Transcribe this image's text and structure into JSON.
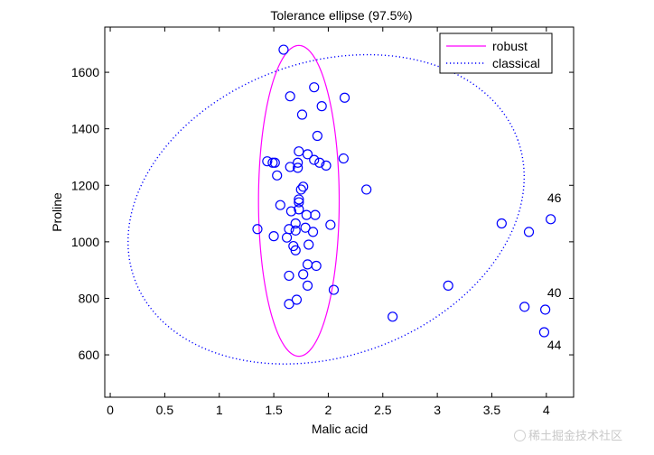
{
  "chart_data": {
    "type": "scatter",
    "title": "Tolerance ellipse (97.5%)",
    "xlabel": "Malic acid",
    "ylabel": "Proline",
    "xlim": [
      -0.05,
      4.25
    ],
    "ylim": [
      450,
      1760
    ],
    "xticks": [
      0,
      0.5,
      1,
      1.5,
      2,
      2.5,
      3,
      3.5,
      4
    ],
    "xtick_labels": [
      "0",
      "0.5",
      "1",
      "1.5",
      "2",
      "2.5",
      "3",
      "3.5",
      "4"
    ],
    "yticks": [
      600,
      800,
      1000,
      1200,
      1400,
      1600
    ],
    "ytick_labels": [
      "600",
      "800",
      "1000",
      "1200",
      "1400",
      "1600"
    ],
    "grid": false,
    "legend": {
      "position": "top-right",
      "entries": [
        {
          "label": "robust",
          "color": "#ff00ff",
          "style": "solid"
        },
        {
          "label": "classical",
          "color": "#0000ff",
          "style": "dotted"
        }
      ]
    },
    "ellipses": [
      {
        "name": "robust",
        "cx": 1.73,
        "cy": 1145,
        "rx": 0.37,
        "ry": 550,
        "angle_deg": 0,
        "color": "#ff00ff"
      },
      {
        "name": "classical",
        "cx": 1.98,
        "cy": 1115,
        "rx": 1.87,
        "ry": 520,
        "angle_deg": -20,
        "color": "#0000ff"
      }
    ],
    "series": [
      {
        "name": "observations",
        "color": "#0000ff",
        "points": [
          [
            1.59,
            1680
          ],
          [
            1.65,
            1515
          ],
          [
            1.87,
            1547
          ],
          [
            2.15,
            1510
          ],
          [
            1.94,
            1480
          ],
          [
            1.76,
            1450
          ],
          [
            1.9,
            1375
          ],
          [
            1.73,
            1320
          ],
          [
            1.81,
            1310
          ],
          [
            1.87,
            1290
          ],
          [
            1.92,
            1280
          ],
          [
            1.98,
            1270
          ],
          [
            2.14,
            1295
          ],
          [
            1.44,
            1285
          ],
          [
            1.49,
            1280
          ],
          [
            1.51,
            1280
          ],
          [
            1.65,
            1265
          ],
          [
            1.72,
            1280
          ],
          [
            1.72,
            1262
          ],
          [
            1.53,
            1235
          ],
          [
            2.35,
            1185
          ],
          [
            1.77,
            1195
          ],
          [
            1.75,
            1185
          ],
          [
            1.73,
            1150
          ],
          [
            1.73,
            1140
          ],
          [
            1.56,
            1130
          ],
          [
            1.66,
            1108
          ],
          [
            1.73,
            1115
          ],
          [
            1.8,
            1095
          ],
          [
            1.88,
            1095
          ],
          [
            2.02,
            1060
          ],
          [
            1.7,
            1065
          ],
          [
            1.64,
            1045
          ],
          [
            1.7,
            1040
          ],
          [
            1.79,
            1050
          ],
          [
            1.86,
            1035
          ],
          [
            1.35,
            1045
          ],
          [
            1.5,
            1020
          ],
          [
            1.62,
            1015
          ],
          [
            1.68,
            985
          ],
          [
            1.7,
            970
          ],
          [
            1.82,
            990
          ],
          [
            1.81,
            920
          ],
          [
            1.89,
            915
          ],
          [
            1.64,
            880
          ],
          [
            1.77,
            885
          ],
          [
            1.81,
            845
          ],
          [
            2.05,
            830
          ],
          [
            1.64,
            780
          ],
          [
            1.71,
            795
          ],
          [
            3.1,
            845
          ],
          [
            2.59,
            735
          ],
          [
            3.59,
            1065
          ],
          [
            3.84,
            1035
          ],
          [
            4.04,
            1080
          ],
          [
            3.8,
            770
          ],
          [
            3.99,
            760
          ],
          [
            3.98,
            680
          ]
        ]
      }
    ],
    "annotations": [
      {
        "text": "46",
        "x": 4.04,
        "y": 1140
      },
      {
        "text": "40",
        "x": 4.04,
        "y": 805
      },
      {
        "text": "44",
        "x": 4.04,
        "y": 620
      }
    ]
  },
  "watermark": "稀土掘金技术社区"
}
